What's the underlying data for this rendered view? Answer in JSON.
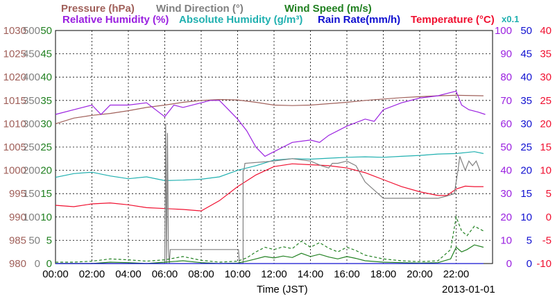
{
  "legend": [
    {
      "text": "Pressure (hPa)",
      "color": "#a0605a"
    },
    {
      "text": "Wind Direction (°)",
      "color": "#808080"
    },
    {
      "text": "Wind Speed (m/s)",
      "color": "#208020"
    },
    {
      "text": "Relative Humidity (%)",
      "color": "#9a20e0"
    },
    {
      "text": "Absolute Humidity (g/m³)",
      "color": "#20b0b0"
    },
    {
      "text": "Rain Rate(mm/h)",
      "color": "#1010d0"
    },
    {
      "text": "Temperature (°C)",
      "color": "#f01030"
    },
    {
      "text": "x0.1",
      "color": "#20b0b0"
    }
  ],
  "chart_data": {
    "type": "line",
    "xlabel": "Time (JST)",
    "date_label": "2013-01-01",
    "x_ticks": [
      "00:00",
      "02:00",
      "04:00",
      "06:00",
      "08:00",
      "10:00",
      "12:00",
      "14:00",
      "16:00",
      "18:00",
      "20:00",
      "22:00"
    ],
    "grid": true,
    "axes": {
      "pressure": {
        "color": "#a0605a",
        "ylim": [
          980,
          1030
        ],
        "ticks": [
          "1030",
          "1025",
          "1020",
          "1015",
          "1010",
          "1005",
          "1000",
          "995",
          "990",
          "985",
          "980"
        ]
      },
      "wind_direction": {
        "color": "#808080",
        "ylim": [
          0,
          500
        ],
        "ticks": [
          "500",
          "450",
          "400",
          "350",
          "300",
          "250",
          "200",
          "150",
          "100",
          "50",
          "0"
        ]
      },
      "wind_speed": {
        "color": "#208020",
        "ylim": [
          0,
          50
        ],
        "ticks": [
          "50",
          "45",
          "40",
          "35",
          "30",
          "25",
          "20",
          "15",
          "10",
          "5",
          "0"
        ]
      },
      "relative_humidity": {
        "color": "#9a20e0",
        "ylim": [
          0,
          100
        ],
        "ticks": [
          "100",
          "90",
          "80",
          "70",
          "60",
          "50",
          "40",
          "30",
          "20",
          "10",
          "0"
        ]
      },
      "rain_rate": {
        "color": "#1010d0",
        "ylim": [
          0,
          50
        ],
        "ticks": [
          "50",
          "45",
          "40",
          "35",
          "30",
          "25",
          "20",
          "15",
          "10",
          "5",
          "0"
        ]
      },
      "temperature": {
        "color": "#f01030",
        "ylim": [
          -10,
          40
        ],
        "ticks": [
          "40",
          "35",
          "30",
          "25",
          "20",
          "15",
          "10",
          "5",
          "0",
          "-5",
          "-10"
        ]
      }
    },
    "series": [
      {
        "name": "Pressure (hPa)",
        "axis": "pressure",
        "color": "#a0605a",
        "style": "solid",
        "x": [
          0,
          1,
          2,
          3,
          4,
          5,
          6,
          7,
          8,
          9,
          10,
          11,
          12,
          13,
          14,
          15,
          16,
          17,
          18,
          19,
          20,
          21,
          22,
          23.5
        ],
        "y": [
          1010,
          1011.2,
          1011.8,
          1012.2,
          1012.8,
          1013.5,
          1014,
          1014.6,
          1015,
          1015.2,
          1015.1,
          1014.6,
          1014,
          1013.9,
          1014,
          1014.3,
          1014.6,
          1015,
          1015.3,
          1015.6,
          1015.8,
          1016,
          1016.1,
          1016
        ]
      },
      {
        "name": "Relative Humidity (%)",
        "axis": "relative_humidity",
        "color": "#9a20e0",
        "style": "solid",
        "x": [
          0,
          1,
          2,
          2.5,
          3,
          4,
          5,
          6,
          6.5,
          7,
          8,
          8.5,
          9,
          9.5,
          10,
          10.5,
          11,
          11.5,
          12,
          12.5,
          13,
          14,
          14.5,
          15,
          16,
          17,
          17.5,
          18,
          19,
          20,
          21,
          21.5,
          22,
          22.3,
          22.7,
          23.2,
          23.6
        ],
        "y": [
          64,
          66,
          68,
          64,
          68,
          68,
          69,
          63,
          68,
          67,
          69,
          70,
          70,
          66,
          62,
          57,
          50,
          46,
          48,
          50,
          52,
          53,
          52,
          55,
          59,
          62,
          61,
          66,
          69,
          71,
          72,
          73,
          74,
          68,
          66,
          65,
          64
        ]
      },
      {
        "name": "Absolute Humidity (g/m³) x0.1",
        "axis": "wind_speed",
        "color": "#20b0b0",
        "style": "solid",
        "x": [
          0,
          1,
          2,
          3,
          4,
          5,
          6,
          7,
          8,
          9,
          10,
          11,
          12,
          13,
          14,
          15,
          16,
          17,
          18,
          19,
          20,
          21,
          22,
          23,
          23.5
        ],
        "y": [
          18.5,
          19.3,
          19.6,
          18.8,
          18.2,
          18.6,
          17.8,
          17.9,
          18.1,
          18.6,
          20,
          21,
          22.2,
          22.5,
          22.4,
          22.6,
          22.8,
          22.9,
          22.8,
          23,
          23.2,
          23.5,
          23.6,
          24,
          23.6
        ]
      },
      {
        "name": "Temperature (°C)",
        "axis": "temperature",
        "color": "#f01030",
        "style": "solid",
        "x": [
          0,
          1,
          2,
          3,
          4,
          5,
          6,
          7,
          8,
          9,
          10,
          11,
          12,
          13,
          14,
          15,
          16,
          17,
          18,
          19,
          20,
          21,
          21.5,
          22,
          22.5,
          23,
          23.5
        ],
        "y": [
          2.5,
          2.2,
          2.8,
          3,
          2.6,
          2,
          1.8,
          1.6,
          1.3,
          3.5,
          6.5,
          9,
          10.8,
          11.4,
          11.2,
          11,
          10.5,
          9.5,
          8,
          6.5,
          5.4,
          4.6,
          4.6,
          6,
          6.6,
          6.5,
          6.5
        ]
      },
      {
        "name": "Wind Direction (°)",
        "axis": "wind_direction",
        "color": "#808080",
        "style": "solid",
        "x": [
          0,
          5.9,
          6.0,
          6.05,
          6.1,
          6.15,
          6.2,
          6.25,
          6.3,
          10.05,
          10.1,
          10.3,
          10.3,
          10.35,
          10.4,
          12,
          13,
          14,
          14.6,
          15,
          15.2,
          15.5,
          16,
          16.5,
          17,
          18,
          19,
          20,
          21,
          21.5,
          21.9,
          22.1,
          22.2,
          22.3,
          22.5,
          22.7,
          22.9,
          23.1,
          23.3
        ],
        "y": [
          0,
          0,
          0,
          300,
          0,
          280,
          30,
          0,
          30,
          30,
          0,
          0,
          200,
          200,
          215,
          220,
          225,
          220,
          210,
          205,
          215,
          215,
          220,
          210,
          175,
          140,
          140,
          140,
          140,
          145,
          150,
          200,
          230,
          220,
          200,
          220,
          210,
          220,
          200
        ]
      },
      {
        "name": "Wind Speed (m/s) max",
        "axis": "wind_speed",
        "color": "#208020",
        "style": "dashed",
        "x": [
          0,
          1,
          2,
          3,
          4,
          5,
          6,
          7,
          8,
          9,
          10,
          10.5,
          11,
          11.5,
          12,
          12.5,
          13,
          13.5,
          14,
          14.5,
          15,
          15.5,
          16,
          16.5,
          17,
          18,
          19,
          20,
          21,
          21.7,
          22,
          22.3,
          22.6,
          23,
          23.5
        ],
        "y": [
          0.3,
          0.3,
          0.5,
          1,
          0.8,
          0.5,
          0.8,
          1.5,
          0.7,
          0.3,
          0.5,
          1.2,
          2.5,
          3.5,
          3,
          3.6,
          3.2,
          4.8,
          3.5,
          4.5,
          3.3,
          2.5,
          3.5,
          2.8,
          1.8,
          1,
          0.6,
          0.4,
          0.6,
          3,
          10,
          7,
          6,
          8,
          7
        ]
      },
      {
        "name": "Wind Speed (m/s)",
        "axis": "wind_speed",
        "color": "#208020",
        "style": "solid",
        "x": [
          0,
          1,
          2,
          3,
          4,
          5,
          6,
          7,
          8,
          9,
          10,
          10.5,
          11,
          11.5,
          12,
          12.5,
          13,
          13.5,
          14,
          14.5,
          15,
          15.5,
          16,
          16.5,
          17,
          18,
          19,
          20,
          21,
          21.7,
          22,
          22.3,
          22.6,
          23,
          23.5
        ],
        "y": [
          0,
          0,
          0,
          0.3,
          0.2,
          0,
          0.3,
          0.6,
          0.2,
          0,
          0.1,
          0.5,
          1,
          1.5,
          1.2,
          1.6,
          1.3,
          2.2,
          1.5,
          2,
          1.4,
          1,
          1.5,
          1.1,
          0.6,
          0.3,
          0.2,
          0.1,
          0.2,
          1,
          3.5,
          2.5,
          3,
          4,
          3.5
        ]
      },
      {
        "name": "Rain Rate(mm/h)",
        "axis": "rain_rate",
        "color": "#1010d0",
        "style": "solid",
        "x": [
          0,
          23.5
        ],
        "y": [
          0,
          0
        ]
      }
    ]
  }
}
